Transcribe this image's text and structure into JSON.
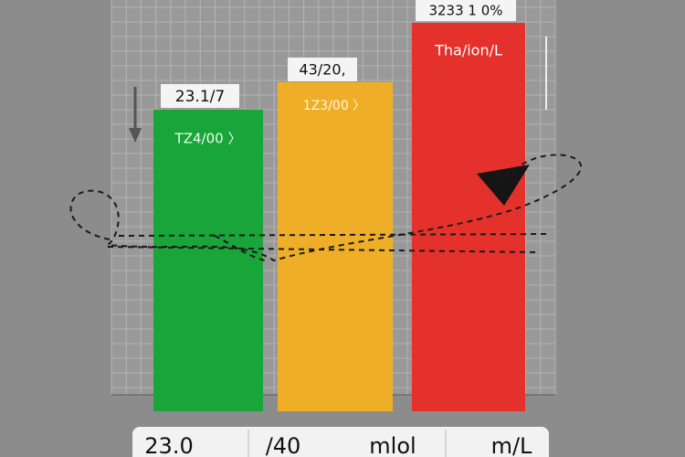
{
  "bars": [
    {
      "label": "23.1/7",
      "inner": "TZ4/00 〉"
    },
    {
      "label": "43/20,",
      "inner": "1Z3/00 〉"
    },
    {
      "label": "3233 1 0%",
      "inner": "Tha/ion/L"
    }
  ],
  "footer": [
    "23.0",
    "/40",
    "mlol",
    "m/L"
  ]
}
